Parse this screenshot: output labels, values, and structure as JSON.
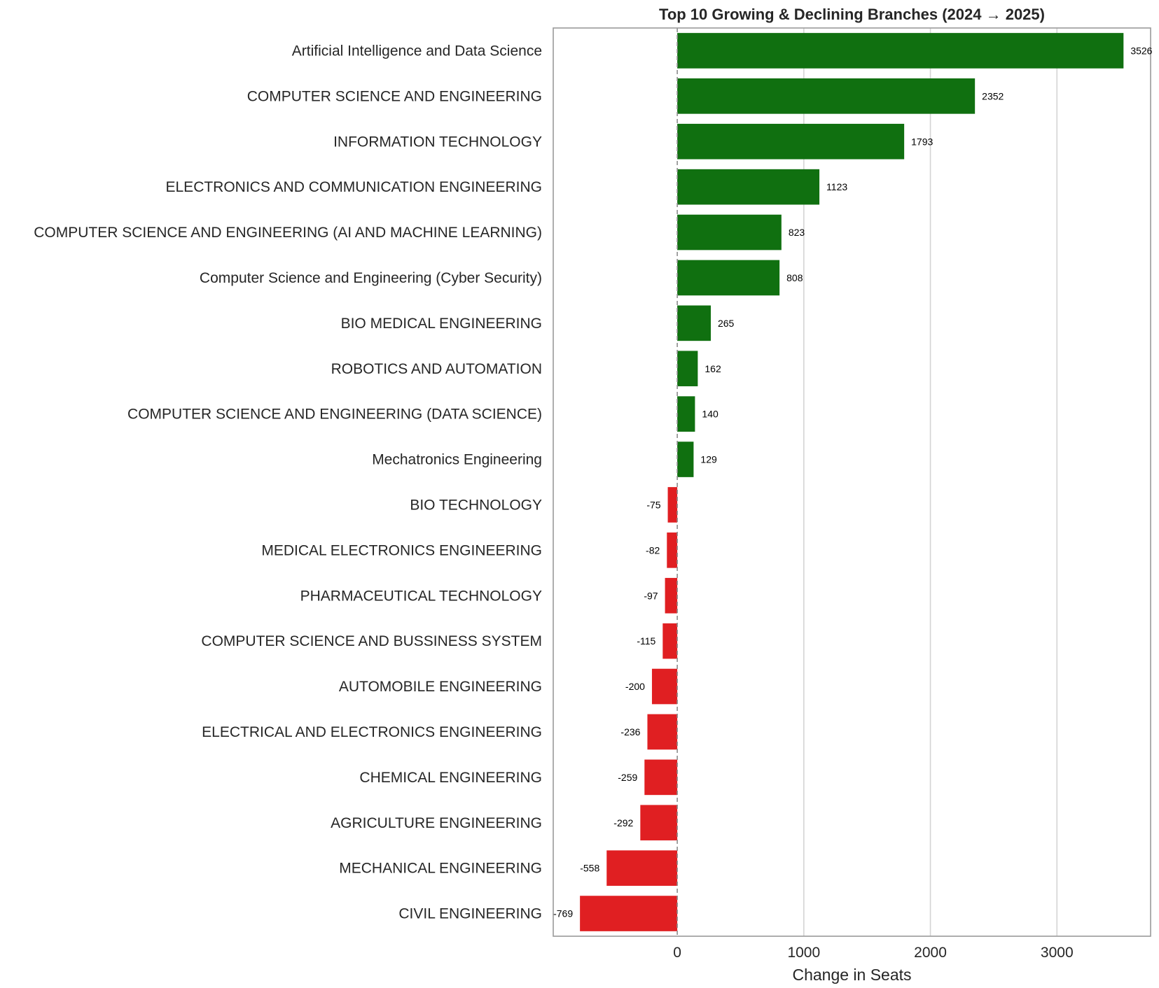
{
  "chart_data": {
    "type": "bar",
    "orientation": "horizontal",
    "title": "Top 10 Growing & Declining Branches (2024 → 2025)",
    "xlabel": "Change in Seats",
    "ylabel": "",
    "xlim": [
      -980,
      3740
    ],
    "xticks": [
      0,
      1000,
      2000,
      3000
    ],
    "grid": "vertical",
    "zero_line": "dashed",
    "colors": {
      "positive": "#107010",
      "negative": "#e01f22",
      "grid": "#d4d4d4",
      "axis": "#9a9a9a",
      "zero_line": "#8c8c8c"
    },
    "categories": [
      "Artificial Intelligence and Data Science",
      "COMPUTER SCIENCE AND ENGINEERING",
      "INFORMATION TECHNOLOGY",
      "ELECTRONICS AND COMMUNICATION ENGINEERING",
      "COMPUTER SCIENCE AND ENGINEERING (AI AND MACHINE LEARNING)",
      "Computer Science and Engineering (Cyber Security)",
      "BIO MEDICAL ENGINEERING",
      "ROBOTICS AND AUTOMATION",
      "COMPUTER SCIENCE AND ENGINEERING (DATA SCIENCE)",
      "Mechatronics Engineering",
      "BIO TECHNOLOGY",
      "MEDICAL ELECTRONICS ENGINEERING",
      "PHARMACEUTICAL TECHNOLOGY",
      "COMPUTER SCIENCE AND BUSSINESS SYSTEM",
      "AUTOMOBILE ENGINEERING",
      "ELECTRICAL AND ELECTRONICS ENGINEERING",
      "CHEMICAL ENGINEERING",
      "AGRICULTURE ENGINEERING",
      "MECHANICAL ENGINEERING",
      "CIVIL ENGINEERING"
    ],
    "values": [
      3526,
      2352,
      1793,
      1123,
      823,
      808,
      265,
      162,
      140,
      129,
      -75,
      -82,
      -97,
      -115,
      -200,
      -236,
      -259,
      -292,
      -558,
      -769
    ]
  }
}
